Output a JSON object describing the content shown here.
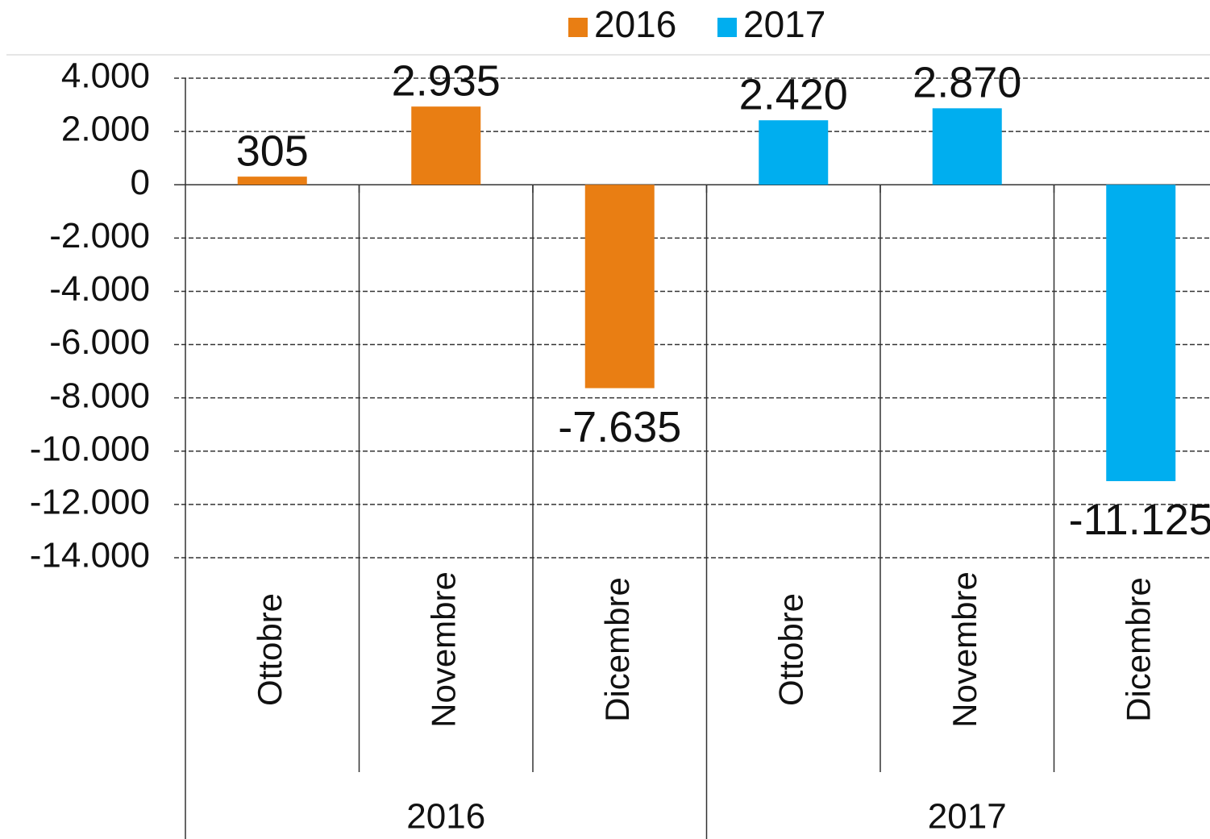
{
  "chart_data": {
    "type": "bar",
    "categories": [
      "Ottobre",
      "Novembre",
      "Dicembre",
      "Ottobre",
      "Novembre",
      "Dicembre"
    ],
    "groups": [
      "2016",
      "2017"
    ],
    "series": [
      {
        "name": "2016",
        "color": "#e97e13",
        "values": [
          305,
          2935,
          -7635,
          null,
          null,
          null
        ],
        "value_labels": [
          "305",
          "2.935",
          "-7.635",
          null,
          null,
          null
        ]
      },
      {
        "name": "2017",
        "color": "#00aeef",
        "values": [
          null,
          null,
          null,
          2420,
          2870,
          -11125
        ],
        "value_labels": [
          null,
          null,
          null,
          "2.420",
          "2.870",
          "-11.125"
        ]
      }
    ],
    "ylim": [
      -14000,
      4000
    ],
    "yticks": [
      {
        "value": 4000,
        "label": "4.000"
      },
      {
        "value": 2000,
        "label": "2.000"
      },
      0,
      {
        "value": -2000,
        "label": "-2.000"
      },
      {
        "value": -4000,
        "label": "-4.000"
      },
      {
        "value": -6000,
        "label": "-6.000"
      },
      {
        "value": -8000,
        "label": "-8.000"
      },
      {
        "value": -10000,
        "label": "-10.000"
      },
      {
        "value": -12000,
        "label": "-12.000"
      },
      {
        "value": -14000,
        "label": "-14.000"
      }
    ],
    "grid": true,
    "legend": "top"
  }
}
